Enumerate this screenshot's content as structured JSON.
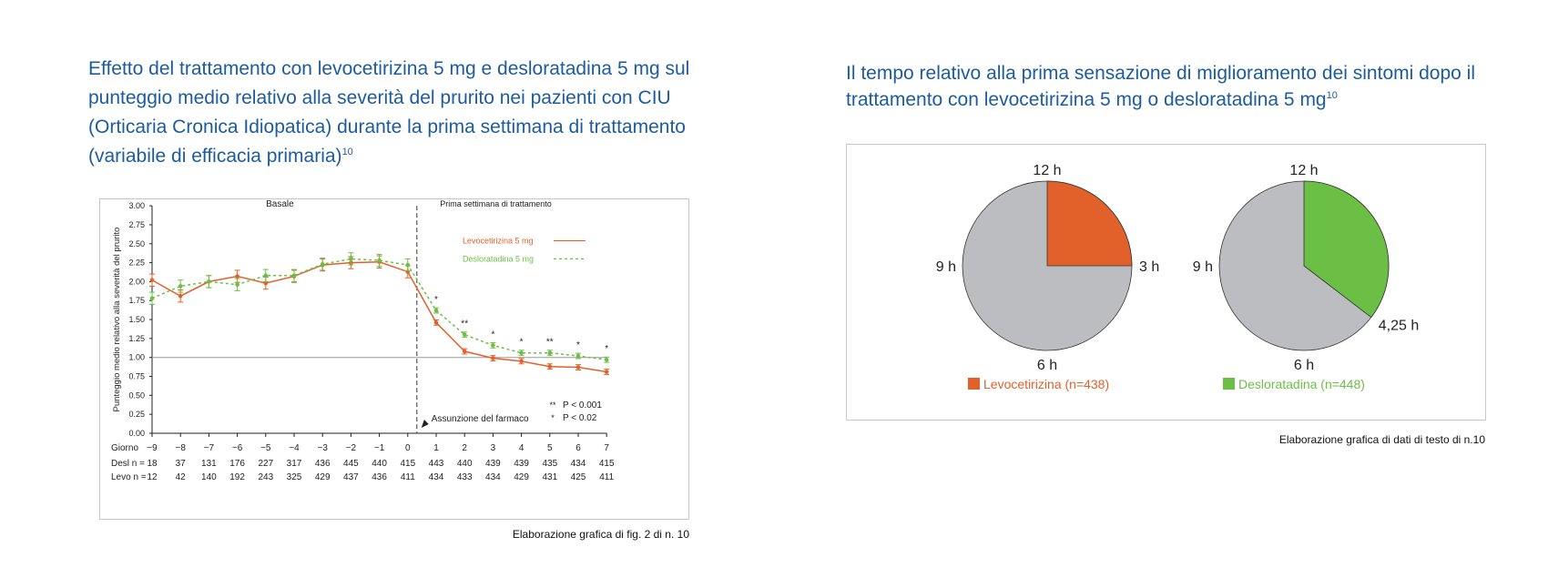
{
  "left_title": {
    "text": "Effetto del trattamento con levocetirizina 5 mg e desloratadina 5 mg sul punteggio medio relativo alla severità del prurito nei pazienti con CIU (Orticaria Cronica Idiopatica) durante la prima settimana di trattamento (variabile di efficacia primaria)",
    "ref": "10"
  },
  "right_title": {
    "text": "Il tempo relativo alla prima sensazione di miglioramento dei sintomi dopo il trattamento con levocetirizina 5 mg o desloratadina 5 mg",
    "ref": "10"
  },
  "left_caption": "Elaborazione grafica di fig. 2 di n. 10",
  "right_caption": "Elaborazione grafica di dati di testo di n.10",
  "colors": {
    "levo": "#e2602a",
    "desl": "#6cbf45",
    "title": "#1c5c9e",
    "pie_rest": "#bcbdc0"
  },
  "chart_data": [
    {
      "type": "line",
      "ylabel": "Punteggio medio relativo alla severità del prurito",
      "ylim": [
        0,
        3
      ],
      "yticks": [
        "0.00",
        "0.25",
        "0.50",
        "0.75",
        "1.00",
        "1.25",
        "1.50",
        "1.75",
        "2.00",
        "2.25",
        "2.50",
        "2.75",
        "3.00"
      ],
      "x": [
        -9,
        -8,
        -7,
        -6,
        -5,
        -4,
        -3,
        -2,
        -1,
        0,
        1,
        2,
        3,
        4,
        5,
        6,
        7
      ],
      "xtick_labels": [
        "−9",
        "−8",
        "−7",
        "−6",
        "−5",
        "−4",
        "−3",
        "−2",
        "−1",
        "0",
        "1",
        "2",
        "3",
        "4",
        "5",
        "6",
        "7"
      ],
      "xlabel_row": "Giorno",
      "section_labels": {
        "baseline": "Basale",
        "treatment": "Prima settimana di trattamento"
      },
      "series": [
        {
          "name": "Levocetirizina 5 mg",
          "key": "levo",
          "style": "solid",
          "values": [
            2.02,
            1.81,
            2.0,
            2.07,
            1.98,
            2.07,
            2.22,
            2.25,
            2.26,
            2.13,
            1.46,
            1.08,
            0.99,
            0.95,
            0.88,
            0.87,
            0.81
          ]
        },
        {
          "name": "Desloratadina 5 mg",
          "key": "desl",
          "style": "dashed",
          "values": [
            1.78,
            1.94,
            2.0,
            1.96,
            2.08,
            2.08,
            2.23,
            2.3,
            2.28,
            2.22,
            1.62,
            1.3,
            1.16,
            1.06,
            1.06,
            1.02,
            0.97
          ]
        }
      ],
      "reference_line": 1.0,
      "significance": [
        "*",
        "**",
        "*",
        "*",
        "**",
        "*",
        "*"
      ],
      "significance_days": [
        1,
        2,
        3,
        4,
        5,
        6,
        7
      ],
      "annotation": "Assunzione del farmaco",
      "significance_legend": [
        {
          "mark": "**",
          "text": "P < 0.001"
        },
        {
          "mark": "*",
          "text": "P < 0.02"
        }
      ],
      "n_rows": [
        {
          "label": "Desl  n =",
          "values": [
            "18",
            "37",
            "131",
            "176",
            "227",
            "317",
            "436",
            "445",
            "440",
            "415",
            "443",
            "440",
            "439",
            "439",
            "435",
            "434",
            "415"
          ]
        },
        {
          "label": "Levo  n =",
          "values": [
            "12",
            "42",
            "140",
            "192",
            "243",
            "325",
            "429",
            "437",
            "436",
            "411",
            "434",
            "433",
            "434",
            "429",
            "431",
            "425",
            "411"
          ]
        }
      ]
    },
    {
      "type": "pie",
      "clock_labels": [
        "12 h",
        "3 h",
        "6 h",
        "9 h"
      ],
      "charts": [
        {
          "name": "Levocetirizina (n=438)",
          "key": "levo",
          "hours": 3,
          "label": "3 h"
        },
        {
          "name": "Desloratadina (n=448)",
          "key": "desl",
          "hours": 4.25,
          "label": "4,25 h"
        }
      ],
      "full_scale_hours": 12
    }
  ]
}
